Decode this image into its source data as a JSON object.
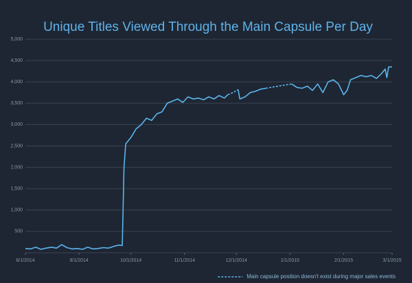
{
  "chart_data": {
    "type": "line",
    "title": "Unique Titles Viewed Through the Main Capsule Per Day",
    "x": [
      "2014-08-01",
      "2014-08-04",
      "2014-08-07",
      "2014-08-10",
      "2014-08-13",
      "2014-08-16",
      "2014-08-19",
      "2014-08-22",
      "2014-08-25",
      "2014-08-28",
      "2014-08-31",
      "2014-09-03",
      "2014-09-06",
      "2014-09-09",
      "2014-09-12",
      "2014-09-15",
      "2014-09-18",
      "2014-09-21",
      "2014-09-24",
      "2014-09-26",
      "2014-09-27",
      "2014-09-28",
      "2014-10-01",
      "2014-10-04",
      "2014-10-07",
      "2014-10-10",
      "2014-10-13",
      "2014-10-16",
      "2014-10-19",
      "2014-10-22",
      "2014-10-25",
      "2014-10-28",
      "2014-10-31",
      "2014-11-03",
      "2014-11-06",
      "2014-11-09",
      "2014-11-12",
      "2014-11-15",
      "2014-11-18",
      "2014-11-21",
      "2014-11-24",
      "2014-11-26",
      "2014-11-29",
      "2014-12-02",
      "2014-12-03",
      "2014-12-06",
      "2014-12-09",
      "2014-12-12",
      "2014-12-15",
      "2014-12-18",
      "2014-12-25",
      "2015-01-02",
      "2015-01-05",
      "2015-01-08",
      "2015-01-11",
      "2015-01-14",
      "2015-01-17",
      "2015-01-20",
      "2015-01-23",
      "2015-01-26",
      "2015-01-29",
      "2015-02-01",
      "2015-02-03",
      "2015-02-05",
      "2015-02-08",
      "2015-02-11",
      "2015-02-14",
      "2015-02-17",
      "2015-02-20",
      "2015-02-23",
      "2015-02-25",
      "2015-02-26",
      "2015-02-27",
      "2015-03-01"
    ],
    "series": [
      {
        "color": "#5cb6f0",
        "line_style": "solid",
        "values": [
          100,
          90,
          130,
          80,
          110,
          130,
          110,
          190,
          120,
          90,
          100,
          80,
          130,
          90,
          100,
          120,
          110,
          150,
          180,
          170,
          2000,
          2550,
          2700,
          2900,
          3000,
          3150,
          3100,
          3250,
          3300,
          3500,
          3550,
          3600,
          3520,
          3650,
          3600,
          3620,
          3580,
          3650,
          3600,
          3680,
          3620,
          3700,
          null,
          3820,
          3600,
          3650,
          3750,
          3780,
          3830,
          3850,
          null,
          3950,
          3870,
          3850,
          3900,
          3800,
          3950,
          3750,
          4000,
          4050,
          3950,
          3700,
          3800,
          4050,
          4100,
          4150,
          4120,
          4150,
          4080,
          4200,
          4300,
          4100,
          4350,
          4350
        ]
      },
      {
        "name": "Main capsule position doesn't exist during major sales events",
        "color": "#5cb6f0",
        "line_style": "dashed",
        "values": [
          null,
          null,
          null,
          null,
          null,
          null,
          null,
          null,
          null,
          null,
          null,
          null,
          null,
          null,
          null,
          null,
          null,
          null,
          null,
          null,
          null,
          null,
          null,
          null,
          null,
          null,
          null,
          null,
          null,
          null,
          null,
          null,
          null,
          null,
          null,
          null,
          null,
          null,
          null,
          null,
          null,
          3700,
          3750,
          3820,
          null,
          null,
          null,
          null,
          null,
          3850,
          3900,
          3950,
          null,
          null,
          null,
          null,
          null,
          null,
          null,
          null,
          null,
          null,
          null,
          null,
          null,
          null,
          null,
          null,
          null,
          null,
          null,
          null,
          null,
          null
        ]
      }
    ],
    "xlim": [
      "2014-08-01",
      "2015-03-01"
    ],
    "xticks": [
      {
        "value": "2014-08-01",
        "label": "8/1/2014"
      },
      {
        "value": "2014-09-01",
        "label": "9/1/2014"
      },
      {
        "value": "2014-10-01",
        "label": "10/1/2014"
      },
      {
        "value": "2014-11-01",
        "label": "11/1/2014"
      },
      {
        "value": "2014-12-01",
        "label": "12/1/2014"
      },
      {
        "value": "2015-01-01",
        "label": "1/1/2015"
      },
      {
        "value": "2015-02-01",
        "label": "2/1/2015"
      },
      {
        "value": "2015-03-01",
        "label": "3/1/2015"
      }
    ],
    "ylim": [
      0,
      5000
    ],
    "yticks": [
      500,
      {
        "value": 1000,
        "label": "1,000"
      },
      {
        "value": 1500,
        "label": "1,500"
      },
      {
        "value": 2000,
        "label": "2,000"
      },
      {
        "value": 2500,
        "label": "2,500"
      },
      {
        "value": 3000,
        "label": "3,000"
      },
      {
        "value": 3500,
        "label": "3,500"
      },
      {
        "value": 4000,
        "label": "4,000"
      },
      {
        "value": 4500,
        "label": "4,500"
      },
      {
        "value": 5000,
        "label": "5,000"
      }
    ],
    "grid": true,
    "legend": "lower right"
  }
}
